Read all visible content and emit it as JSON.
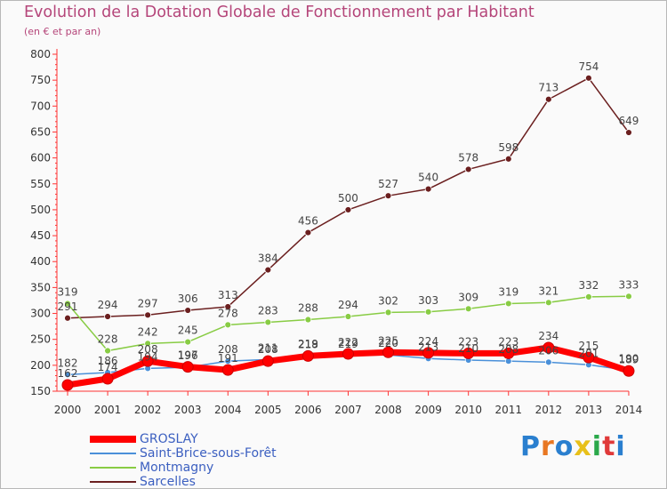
{
  "chart_data": {
    "type": "line",
    "title": "Evolution de la Dotation Globale de Fonctionnement par Habitant",
    "subtitle": "(en € et par an)",
    "xlabel": "",
    "ylabel": "",
    "categories": [
      "2000",
      "2001",
      "2002",
      "2003",
      "2004",
      "2005",
      "2006",
      "2007",
      "2008",
      "2009",
      "2010",
      "2011",
      "2012",
      "2013",
      "2014"
    ],
    "yticks": [
      150,
      200,
      250,
      300,
      350,
      400,
      450,
      500,
      550,
      600,
      650,
      700,
      750,
      800
    ],
    "ylim": [
      150,
      800
    ],
    "grid": false,
    "legend_position": "bottom-left",
    "series": [
      {
        "name": "GROSLAY",
        "color": "#ff0000",
        "values": [
          162,
          174,
          208,
          197,
          191,
          208,
          218,
          222,
          225,
          224,
          223,
          223,
          234,
          215,
          189
        ],
        "labels": [
          "162",
          "174",
          "208",
          "197",
          "191",
          "208",
          "218",
          "222",
          "225",
          "224",
          "223",
          "223",
          "234",
          "215",
          "189"
        ]
      },
      {
        "name": "Saint-Brice-sous-Forêt",
        "color": "#4a90d9",
        "values": [
          182,
          186,
          194,
          196,
          208,
          211,
          219,
          219,
          220,
          213,
          210,
          208,
          206,
          201,
          190
        ],
        "labels": [
          "182",
          "186",
          "194",
          "196",
          "208",
          "211",
          "219",
          "219",
          "220",
          "213",
          "210",
          "208",
          "206",
          "201",
          "190"
        ]
      },
      {
        "name": "Montmagny",
        "color": "#88cc44",
        "values": [
          319,
          228,
          242,
          245,
          278,
          283,
          288,
          294,
          302,
          303,
          309,
          319,
          321,
          332,
          333
        ],
        "labels": [
          "319",
          "228",
          "242",
          "245",
          "278",
          "283",
          "288",
          "294",
          "302",
          "303",
          "309",
          "319",
          "321",
          "332",
          "333"
        ]
      },
      {
        "name": "Sarcelles",
        "color": "#6b1f1f",
        "values": [
          291,
          294,
          297,
          306,
          313,
          384,
          456,
          500,
          527,
          540,
          578,
          598,
          713,
          754,
          649
        ],
        "labels": [
          "291",
          "294",
          "297",
          "306",
          "313",
          "384",
          "456",
          "500",
          "527",
          "540",
          "578",
          "598",
          "713",
          "754",
          "649"
        ]
      }
    ]
  },
  "legend": {
    "items": [
      {
        "name": "GROSLAY",
        "color": "#ff0000"
      },
      {
        "name": "Saint-Brice-sous-Forêt",
        "color": "#4a90d9"
      },
      {
        "name": "Montmagny",
        "color": "#88cc44"
      },
      {
        "name": "Sarcelles",
        "color": "#6b1f1f"
      }
    ]
  },
  "logo": {
    "letters": [
      {
        "char": "P",
        "color": "#2a7fcf"
      },
      {
        "char": "r",
        "color": "#e87722"
      },
      {
        "char": "o",
        "color": "#2a7fcf"
      },
      {
        "char": "x",
        "color": "#e8c01a"
      },
      {
        "char": "i",
        "color": "#2aa84a"
      },
      {
        "char": "t",
        "color": "#e03a3a"
      },
      {
        "char": "i",
        "color": "#2a7fcf"
      }
    ]
  }
}
